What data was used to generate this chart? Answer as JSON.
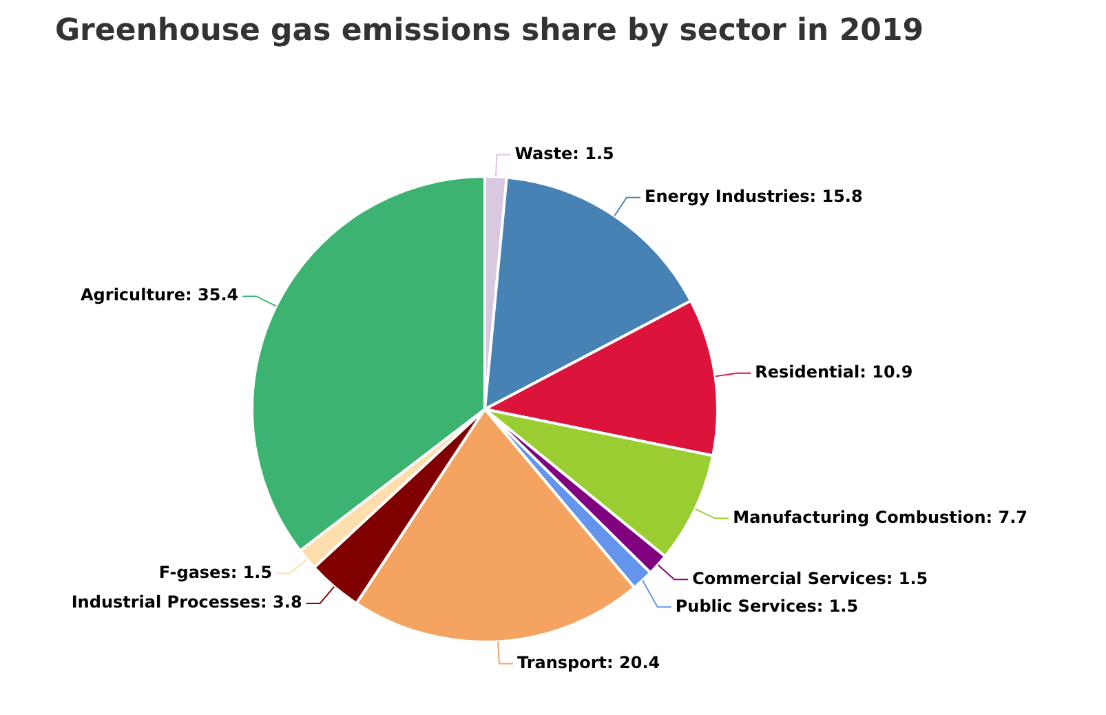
{
  "chart_data": {
    "type": "pie",
    "title": "Greenhouse gas emissions share by sector in 2019",
    "categories": [
      "Waste",
      "Energy Industries",
      "Residential",
      "Manufacturing Combustion",
      "Commercial Services",
      "Public Services",
      "Transport",
      "Industrial Processes",
      "F-gases",
      "Agriculture"
    ],
    "values": [
      1.5,
      15.8,
      10.9,
      7.7,
      1.5,
      1.5,
      20.4,
      3.8,
      1.5,
      35.4
    ],
    "colors": [
      "#d8c8e0",
      "#4682b4",
      "#dc143c",
      "#9acd32",
      "#800080",
      "#6495ed",
      "#f4a460",
      "#800000",
      "#ffdead",
      "#3cb371"
    ],
    "value_labels": [
      ": 1.5",
      ": 15.8",
      ": 10.9",
      ": 7.7",
      ": 1.5",
      ": 1.5",
      ": 20.4",
      ": 3.8",
      ": 1.5",
      ": 35.4"
    ],
    "legend": false
  }
}
